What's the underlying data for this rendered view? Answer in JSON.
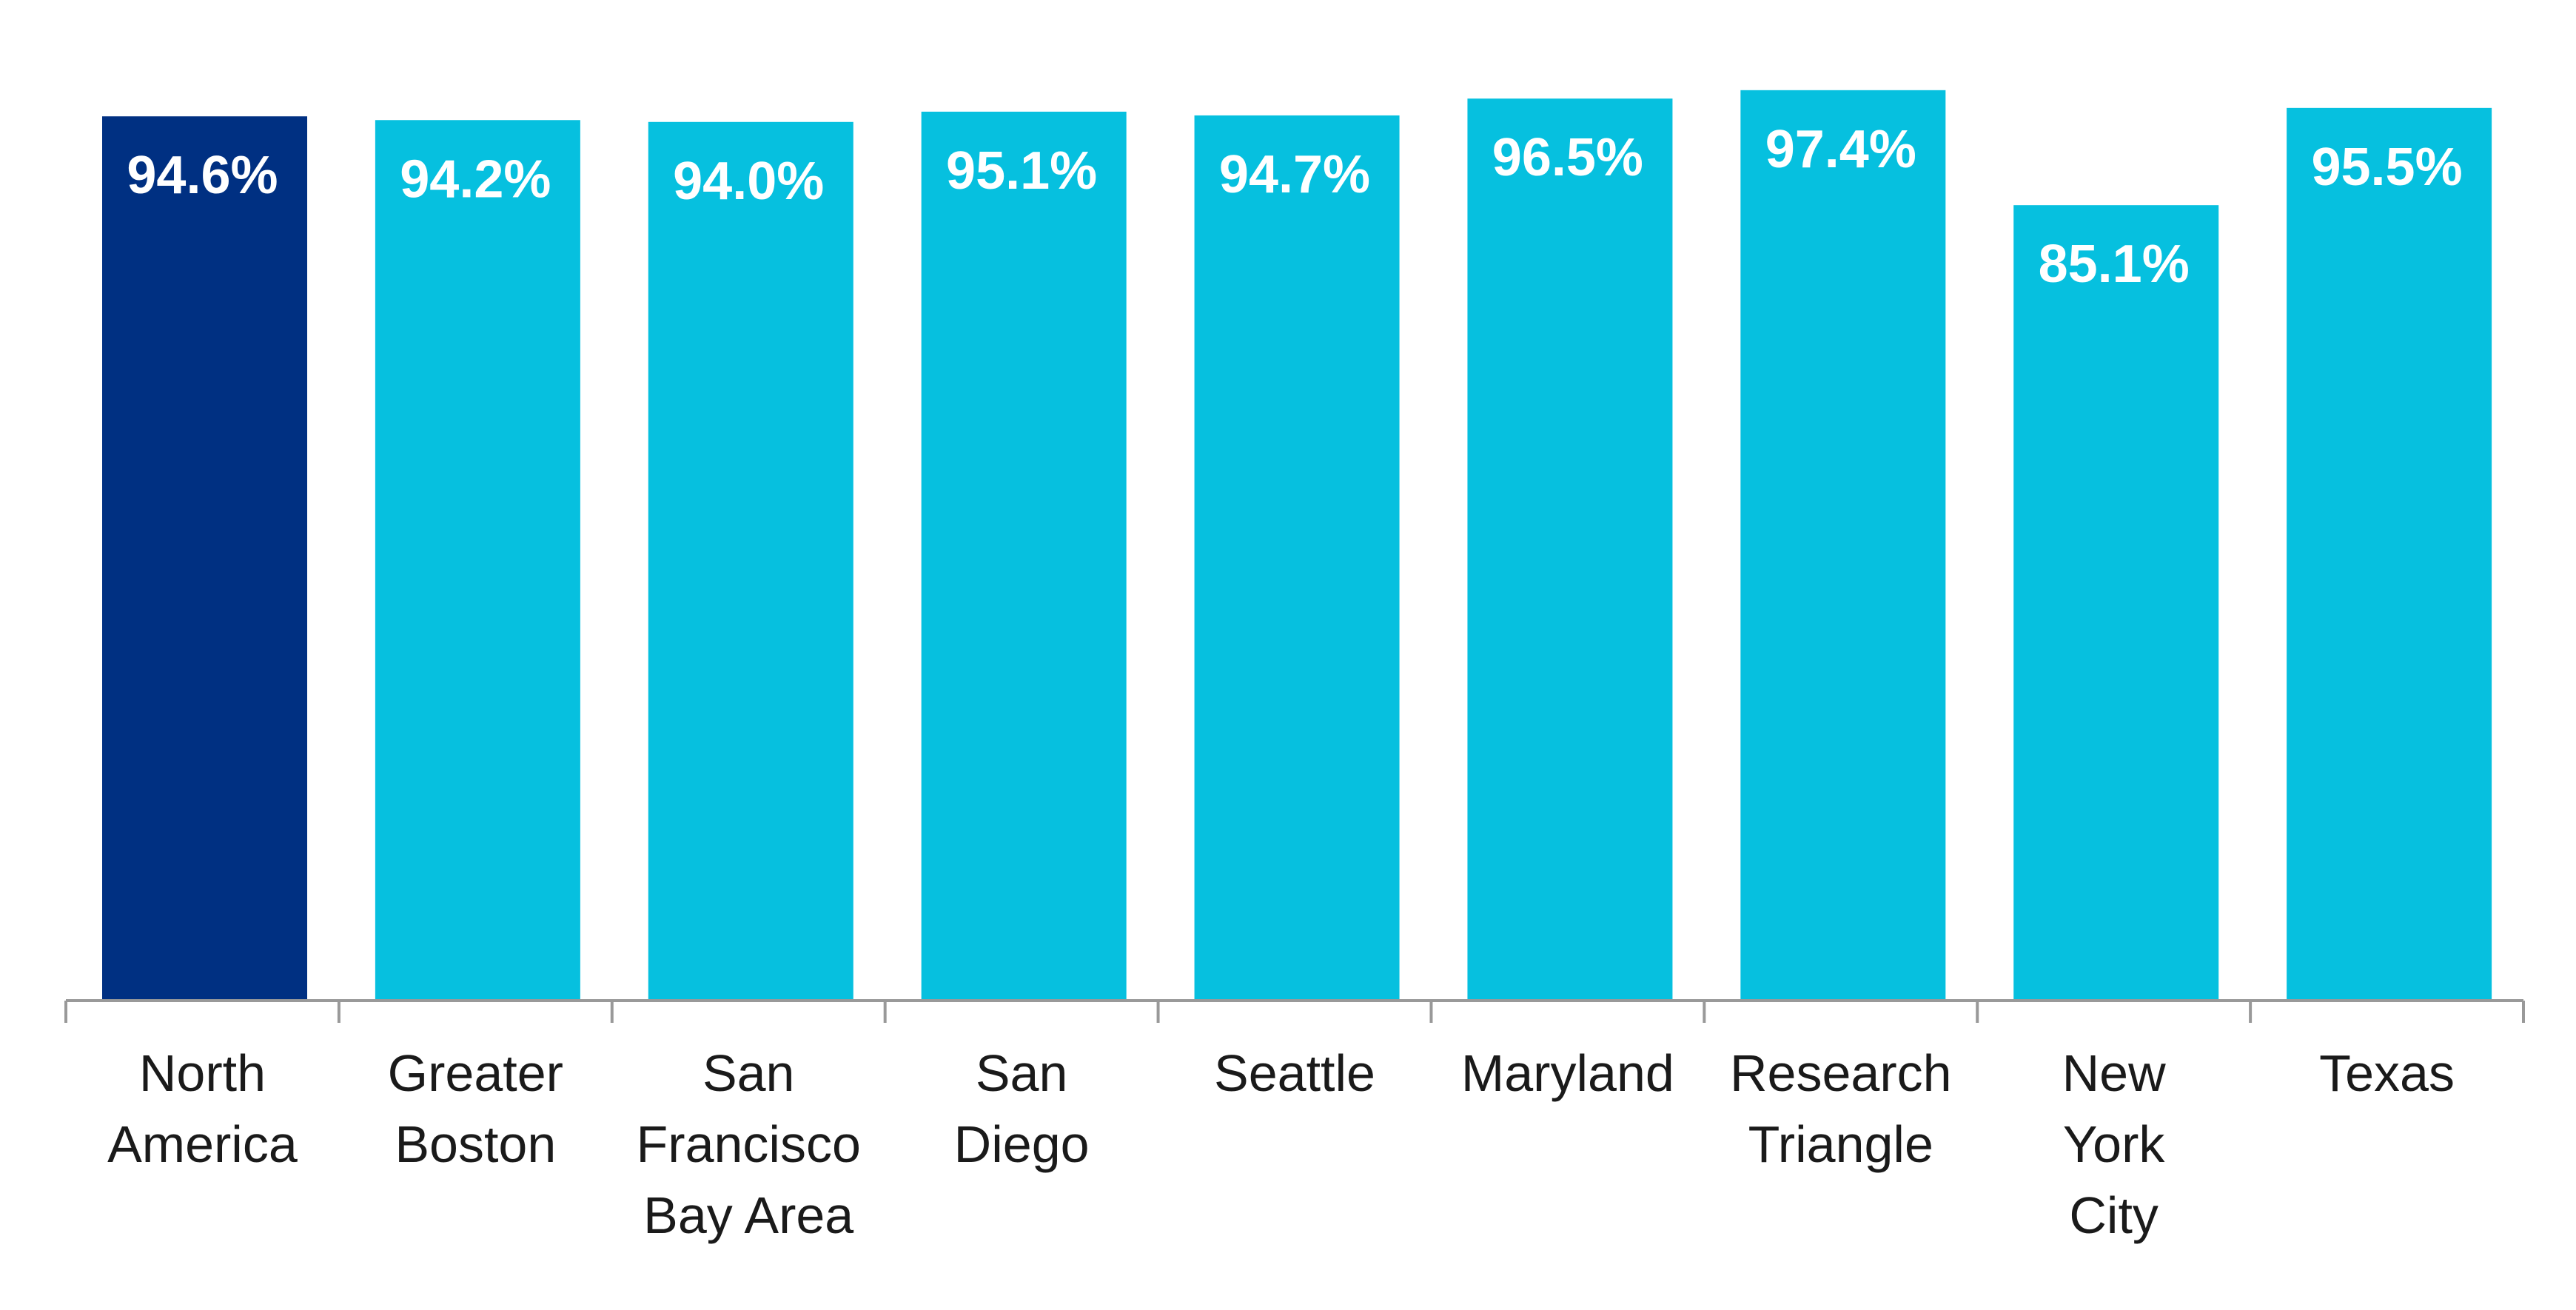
{
  "chart_data": {
    "type": "bar",
    "categories": [
      "North\nAmerica",
      "Greater\nBoston",
      "San\nFrancisco\nBay Area",
      "San\nDiego",
      "Seattle",
      "Maryland",
      "Research\nTriangle",
      "New\nYork\nCity",
      "Texas"
    ],
    "values": [
      94.6,
      94.2,
      94.0,
      95.1,
      94.7,
      96.5,
      97.4,
      85.1,
      95.5
    ],
    "value_labels": [
      "94.6%",
      "94.2%",
      "94.0%",
      "95.1%",
      "94.7%",
      "96.5%",
      "97.4%",
      "85.1%",
      "95.5%"
    ],
    "colors": [
      "#003082",
      "#06c0df",
      "#06c0df",
      "#06c0df",
      "#06c0df",
      "#06c0df",
      "#06c0df",
      "#06c0df",
      "#06c0df"
    ],
    "ylim": [
      0,
      100
    ]
  }
}
